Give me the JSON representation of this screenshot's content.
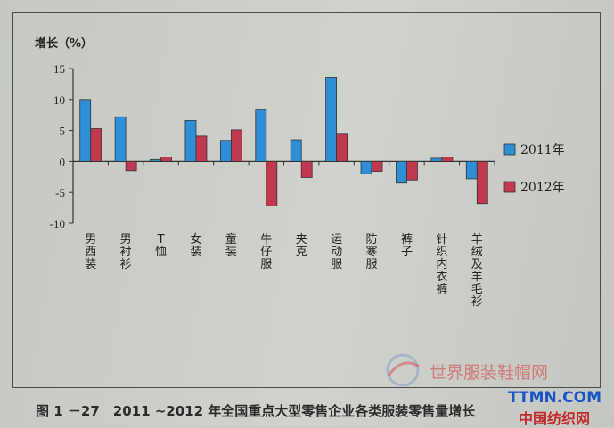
{
  "chart_data": {
    "type": "bar",
    "ylabel": "增长（%）",
    "ylim": [
      -10,
      15
    ],
    "yticks": [
      15,
      10,
      5,
      0,
      -5,
      -10
    ],
    "categories": [
      "男西装",
      "男衬衫",
      "T恤",
      "女装",
      "童装",
      "牛仔服",
      "夹克",
      "运动服",
      "防寒服",
      "裤子",
      "针织内衣裤",
      "羊绒及羊毛衫"
    ],
    "series": [
      {
        "name": "2011年",
        "color": "#2f8fd6",
        "values": [
          10.0,
          7.2,
          0.3,
          6.6,
          3.4,
          8.3,
          3.5,
          13.5,
          -2.0,
          -3.5,
          0.5,
          -2.8
        ]
      },
      {
        "name": "2012年",
        "color": "#c0394e",
        "values": [
          5.3,
          -1.5,
          0.7,
          4.1,
          5.1,
          -7.2,
          -2.6,
          4.4,
          -1.6,
          -3.0,
          0.7,
          -6.8
        ]
      }
    ],
    "grid": false,
    "legend": "right"
  },
  "caption": "图 1 －27　2011 ~2012 年全国重点大型零售企业各类服装零售量增长",
  "watermark": {
    "cn_text": "世界服装鞋帽网",
    "site_en": "TTMN.COM",
    "site_cn": "中国纺织网"
  }
}
